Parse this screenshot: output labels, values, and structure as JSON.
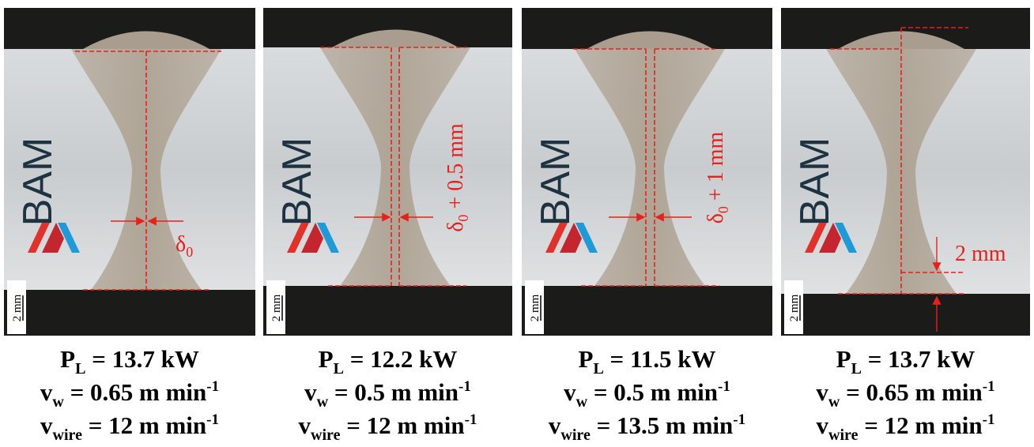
{
  "logo": "BAM",
  "panels": [
    {
      "scale_bar": "2 mm",
      "annotation": {
        "symbol": "δ",
        "sub": "0"
      },
      "caption": {
        "power": {
          "symbol": "P",
          "sub": "L",
          "text": " = 13.7 kW"
        },
        "speed": {
          "symbol": "v",
          "sub": "w",
          "text": " = 0.65 m min",
          "sup": "-1"
        },
        "wire": {
          "symbol": "v",
          "sub": "wire",
          "text": " = 12 m min",
          "sup": "-1"
        }
      }
    },
    {
      "scale_bar": "2 mm",
      "annotation": {
        "symbol": "δ",
        "sub": "0",
        "text": " + 0.5 mm"
      },
      "caption": {
        "power": {
          "symbol": "P",
          "sub": "L",
          "text": " = 12.2 kW"
        },
        "speed": {
          "symbol": "v",
          "sub": "w",
          "text": " = 0.5 m min",
          "sup": "-1"
        },
        "wire": {
          "symbol": "v",
          "sub": "wire",
          "text": " = 12 m min",
          "sup": "-1"
        }
      }
    },
    {
      "scale_bar": "2 mm",
      "annotation": {
        "symbol": "δ",
        "sub": "0",
        "text": " + 1 mm"
      },
      "caption": {
        "power": {
          "symbol": "P",
          "sub": "L",
          "text": " = 11.5 kW"
        },
        "speed": {
          "symbol": "v",
          "sub": "w",
          "text": " = 0.5 m min",
          "sup": "-1"
        },
        "wire": {
          "symbol": "v",
          "sub": "wire",
          "text": " = 13.5 m min",
          "sup": "-1"
        }
      }
    },
    {
      "scale_bar": "2 mm",
      "annotation": {
        "text": "2 mm"
      },
      "caption": {
        "power": {
          "symbol": "P",
          "sub": "L",
          "text": " = 13.7 kW"
        },
        "speed": {
          "symbol": "v",
          "sub": "w",
          "text": " = 0.65 m min",
          "sup": "-1"
        },
        "wire": {
          "symbol": "v",
          "sub": "wire",
          "text": " = 12 m min",
          "sup": "-1"
        }
      }
    }
  ]
}
